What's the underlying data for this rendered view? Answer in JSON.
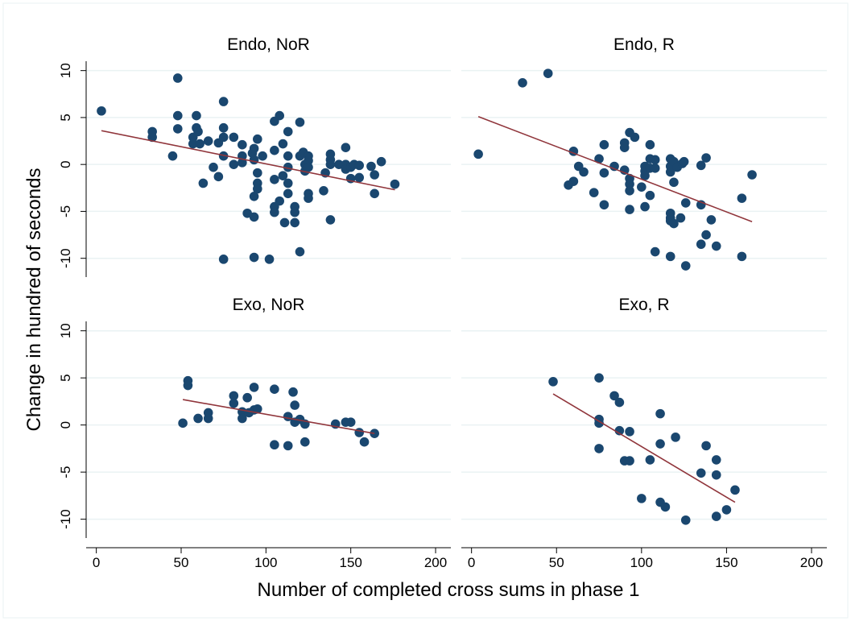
{
  "chart_data": {
    "type": "scatter",
    "y_label": "Change in hundred of seconds",
    "x_label": "Number of completed cross sums in phase 1",
    "xlim": [
      -6,
      209
    ],
    "ylim": [
      -12,
      11
    ],
    "xticks": [
      0,
      50,
      100,
      150,
      200
    ],
    "yticks": [
      10,
      5,
      0,
      -5,
      -10
    ],
    "grid": true,
    "point_color": "#1a476f",
    "fit_color": "#90353b",
    "panels": [
      {
        "title": "Endo, NoR",
        "x": [
          3,
          33,
          33,
          48,
          48,
          48,
          45,
          59,
          59,
          60,
          57,
          57,
          61,
          66,
          63,
          69,
          72,
          72,
          75,
          75,
          75,
          75,
          75,
          81,
          81,
          86,
          86,
          86,
          89,
          92,
          93,
          93,
          93,
          93,
          93,
          95,
          95,
          95,
          95,
          98,
          102,
          105,
          105,
          105,
          105,
          105,
          108,
          108,
          110,
          110,
          111,
          113,
          113,
          113,
          113,
          113,
          117,
          117,
          117,
          120,
          120,
          120,
          122,
          123,
          123,
          125,
          125,
          125,
          125,
          125,
          134,
          135,
          138,
          138,
          138,
          138,
          143,
          147,
          147,
          147,
          150,
          150,
          152,
          155,
          155,
          162,
          164,
          164,
          168,
          176
        ],
        "values": [
          5.7,
          3.5,
          2.9,
          9.2,
          5.2,
          3.8,
          0.9,
          5.2,
          3.9,
          3.5,
          2.9,
          2.2,
          2.2,
          2.5,
          -2,
          -0.3,
          2.3,
          -1.3,
          6.7,
          3.9,
          2.9,
          0.9,
          -10.1,
          2.9,
          0,
          2.1,
          0.9,
          0.2,
          -5.2,
          1.2,
          1.7,
          0.5,
          -3.4,
          -5.6,
          -9.9,
          2.7,
          -0.9,
          -2,
          -2.6,
          0.9,
          -10.1,
          4.6,
          1.5,
          -1.6,
          -4.5,
          -5.1,
          5.2,
          -3.9,
          2.2,
          -1.2,
          -6.2,
          3.5,
          0.9,
          -0.3,
          -2,
          -3.1,
          -4.5,
          -5.1,
          -6.2,
          4.5,
          0.9,
          -9.3,
          1.3,
          0,
          -0.7,
          0.9,
          0.4,
          -3.1,
          -3.6,
          -0.3,
          -2.8,
          -0.9,
          1.1,
          0.5,
          0,
          -5.9,
          0,
          1.8,
          0,
          -0.5,
          -0.3,
          -1.5,
          0,
          -0.1,
          -1.4,
          -0.2,
          -1.1,
          -3.1,
          0.3,
          -2.1
        ],
        "fit_x": [
          3,
          176
        ],
        "fit_values": [
          3.6,
          -2.7
        ]
      },
      {
        "title": "Endo, R",
        "x": [
          4,
          30,
          45,
          60,
          60,
          57,
          63,
          66,
          72,
          75,
          78,
          78,
          78,
          84,
          90,
          90,
          90,
          93,
          93,
          93,
          93,
          93,
          96,
          100,
          102,
          102,
          102,
          102,
          105,
          105,
          105,
          105,
          108,
          108,
          108,
          117,
          117,
          117,
          117,
          117,
          117,
          117,
          119,
          119,
          119,
          121,
          123,
          124,
          125,
          126,
          126,
          135,
          135,
          135,
          138,
          138,
          141,
          144,
          159,
          159,
          165
        ],
        "values": [
          1.1,
          8.7,
          9.7,
          1.4,
          -1.8,
          -2.2,
          -0.2,
          -0.8,
          -3,
          0.6,
          -0.9,
          2.1,
          -4.3,
          -0.2,
          2.3,
          1.8,
          -0.6,
          3.4,
          -1.5,
          -2.1,
          -2.8,
          -4.8,
          2.9,
          -2.4,
          -0.2,
          -0.7,
          -1.2,
          -4.5,
          2.1,
          0.6,
          -0.4,
          -3.3,
          0.5,
          -0.4,
          -9.3,
          0.6,
          -0.2,
          -0.8,
          -5.2,
          -5.7,
          -6,
          -9.8,
          0.3,
          -1.9,
          -6.3,
          -0.3,
          -5.7,
          0.1,
          0.3,
          -10.8,
          -4.1,
          -0.1,
          -4.3,
          -8.5,
          0.7,
          -7.5,
          -5.9,
          -8.7,
          -3.6,
          -9.8,
          -1.1
        ],
        "fit_x": [
          4,
          165
        ],
        "fit_values": [
          5.1,
          -6.1
        ]
      },
      {
        "title": "Exo, NoR",
        "x": [
          51,
          54,
          54,
          60,
          66,
          66,
          81,
          81,
          86,
          86,
          89,
          90,
          93,
          93,
          95,
          105,
          105,
          113,
          113,
          116,
          117,
          117,
          120,
          123,
          123,
          141,
          147,
          150,
          155,
          158,
          164
        ],
        "values": [
          0.2,
          4.7,
          4.2,
          0.7,
          1.3,
          0.7,
          3.1,
          2.3,
          1.4,
          0.7,
          2.9,
          1.3,
          1.6,
          4,
          1.7,
          3.8,
          -2.1,
          0.9,
          -2.2,
          3.5,
          2.1,
          0.3,
          0.6,
          0.1,
          -1.8,
          0.1,
          0.3,
          0.3,
          -0.8,
          -1.8,
          -0.9
        ],
        "fit_x": [
          51,
          164
        ],
        "fit_values": [
          2.7,
          -0.9
        ]
      },
      {
        "title": "Exo, R",
        "x": [
          48,
          75,
          75,
          75,
          75,
          84,
          87,
          87,
          90,
          93,
          93,
          100,
          105,
          111,
          111,
          111,
          114,
          120,
          126,
          135,
          138,
          144,
          144,
          144,
          150,
          155
        ],
        "values": [
          4.6,
          5,
          0.6,
          0.2,
          -2.5,
          3.1,
          2.4,
          -0.6,
          -3.8,
          -0.7,
          -3.8,
          -7.8,
          -3.7,
          1.2,
          -2,
          -8.2,
          -8.7,
          -1.3,
          -10.1,
          -5.1,
          -2.2,
          -3.7,
          -5.3,
          -9.7,
          -9,
          -6.9
        ],
        "fit_x": [
          48,
          155
        ],
        "fit_values": [
          3.3,
          -8.2
        ]
      }
    ]
  }
}
